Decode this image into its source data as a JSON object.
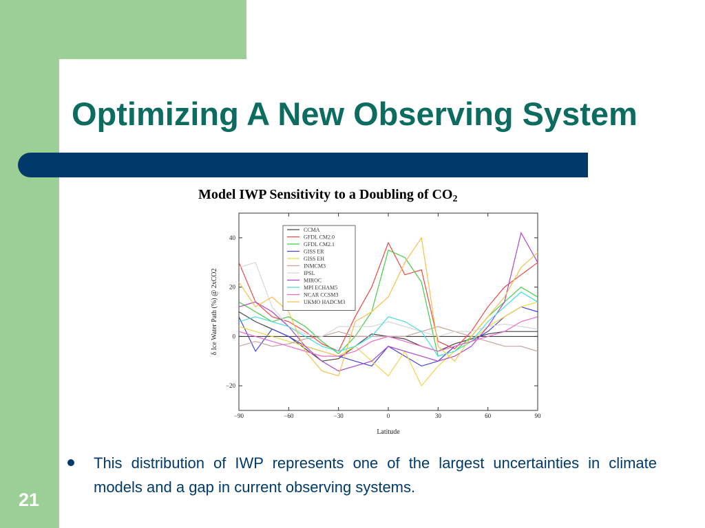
{
  "slide": {
    "title": "Optimizing A New Observing System",
    "chart_heading": "Model IWP Sensitivity to a Doubling of CO",
    "chart_heading_sub": "2",
    "bullet": "This distribution of IWP represents one of the largest uncertainties in climate models and a gap in current observing systems.",
    "page_number": "21",
    "colors": {
      "green": "#9ccf96",
      "navy": "#003a6b",
      "title_teal": "#0c6c5f"
    }
  },
  "chart_data": {
    "type": "line",
    "xlabel": "Latitude",
    "ylabel": "δ Ice Water Path (%) @ 2xCO2",
    "xlim": [
      -90,
      90
    ],
    "ylim": [
      -30,
      50
    ],
    "xticks": [
      -90,
      -60,
      -30,
      0,
      30,
      60,
      90
    ],
    "yticks": [
      -20,
      0,
      20,
      40
    ],
    "legend_position": "top-left",
    "x": [
      -90,
      -80,
      -70,
      -60,
      -50,
      -40,
      -30,
      -20,
      -10,
      0,
      10,
      20,
      30,
      40,
      50,
      60,
      70,
      80,
      90
    ],
    "series": [
      {
        "name": "CCMA",
        "color": "#444444",
        "values": [
          10,
          6,
          3,
          0,
          -5,
          -10,
          -9,
          -4,
          1,
          0,
          -1,
          -4,
          -6,
          -3,
          -1,
          1,
          2,
          2,
          2
        ]
      },
      {
        "name": "GFDL CM2.0",
        "color": "#ee4444",
        "values": [
          30,
          14,
          8,
          6,
          2,
          -3,
          -6,
          8,
          20,
          38,
          25,
          27,
          -2,
          -5,
          2,
          12,
          20,
          25,
          30
        ]
      },
      {
        "name": "GFDL CM2.1",
        "color": "#44cc44",
        "values": [
          14,
          10,
          6,
          8,
          4,
          -2,
          -7,
          0,
          10,
          35,
          32,
          22,
          -8,
          -6,
          0,
          8,
          14,
          20,
          16
        ]
      },
      {
        "name": "GISS ER",
        "color": "#4444dd",
        "values": [
          8,
          -6,
          3,
          0,
          -4,
          -6,
          -8,
          -10,
          -12,
          -4,
          -8,
          -12,
          -10,
          -4,
          -2,
          2,
          8,
          12,
          10
        ]
      },
      {
        "name": "GISS EH",
        "color": "#f0d44c",
        "values": [
          4,
          2,
          0,
          -2,
          -4,
          -6,
          -8,
          -4,
          -10,
          -16,
          -6,
          -20,
          -12,
          -6,
          -2,
          4,
          8,
          12,
          14
        ]
      },
      {
        "name": "INMCM3",
        "color": "#c9a0a0",
        "values": [
          -4,
          -2,
          -4,
          -3,
          -1,
          0,
          2,
          0,
          0,
          0,
          0,
          2,
          4,
          2,
          0,
          -2,
          -4,
          -4,
          -6
        ]
      },
      {
        "name": "IPSL",
        "color": "#d6d6d6",
        "values": [
          28,
          30,
          12,
          4,
          1,
          0,
          4,
          4,
          4,
          6,
          4,
          2,
          0,
          2,
          2,
          4,
          5,
          4,
          3
        ]
      },
      {
        "name": "MIROC",
        "color": "#aa44cc",
        "values": [
          12,
          14,
          10,
          4,
          -4,
          -10,
          -14,
          -12,
          -10,
          -4,
          -6,
          -8,
          -10,
          -8,
          -4,
          4,
          14,
          42,
          30
        ]
      },
      {
        "name": "MPI ECHAM5",
        "color": "#44dddd",
        "values": [
          6,
          8,
          6,
          4,
          0,
          -4,
          -6,
          -4,
          0,
          8,
          6,
          2,
          -8,
          -6,
          -2,
          6,
          12,
          18,
          14
        ]
      },
      {
        "name": "NCAR CCSM3",
        "color": "#ee66cc",
        "values": [
          2,
          0,
          -2,
          -4,
          -6,
          -8,
          -8,
          -6,
          -2,
          0,
          -2,
          -4,
          -6,
          -4,
          -2,
          0,
          2,
          6,
          8
        ]
      },
      {
        "name": "UKMO HADCM3",
        "color": "#f5c04a",
        "values": [
          22,
          12,
          16,
          10,
          -6,
          -14,
          -16,
          6,
          10,
          16,
          30,
          40,
          -4,
          -10,
          0,
          8,
          16,
          28,
          34
        ]
      }
    ]
  }
}
